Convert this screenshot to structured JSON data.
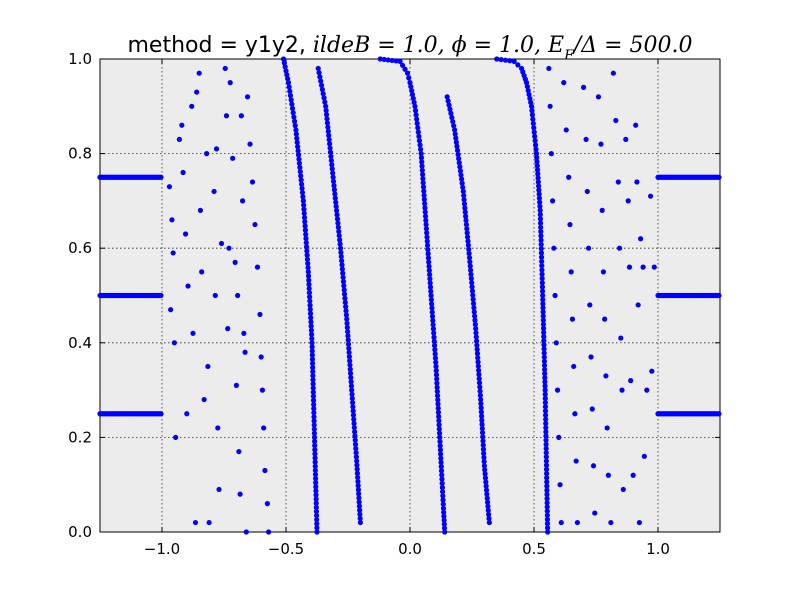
{
  "chart_data": {
    "type": "scatter",
    "title": "method = y1y2, ildeB = 1.0, ϕ = 1.0, E_F/Δ = 500.0",
    "title_parts": {
      "plain": "method = y1y2, ",
      "math": "ildeB = 1.0, ϕ = 1.0, E",
      "sub": "F",
      "math2": "/Δ = 500.0"
    },
    "xlabel": "",
    "ylabel": "",
    "xlim": [
      -1.25,
      1.25
    ],
    "ylim": [
      0.0,
      1.0
    ],
    "xticks": [
      -1.0,
      -0.5,
      0.0,
      0.5,
      1.0
    ],
    "xtick_labels": [
      "−1.0",
      "−0.5",
      "0.0",
      "0.5",
      "1.0"
    ],
    "yticks": [
      0.0,
      0.2,
      0.4,
      0.6,
      0.8,
      1.0
    ],
    "ytick_labels": [
      "0.0",
      "0.2",
      "0.4",
      "0.6",
      "0.8",
      "1.0"
    ],
    "grid": true,
    "marker_color": "#0000ff",
    "background": "#ececec",
    "flat_bands": [
      {
        "y": 0.25,
        "x_ranges": [
          [
            -1.25,
            -1.0
          ],
          [
            1.0,
            1.25
          ]
        ]
      },
      {
        "y": 0.5,
        "x_ranges": [
          [
            -1.25,
            -1.0
          ],
          [
            1.0,
            1.25
          ]
        ]
      },
      {
        "y": 0.75,
        "x_ranges": [
          [
            -1.25,
            -1.0
          ],
          [
            1.0,
            1.25
          ]
        ]
      }
    ],
    "dense_curves": [
      {
        "points": [
          [
            -0.51,
            1.0
          ],
          [
            -0.49,
            0.95
          ],
          [
            -0.46,
            0.85
          ],
          [
            -0.43,
            0.7
          ],
          [
            -0.41,
            0.55
          ],
          [
            -0.395,
            0.4
          ],
          [
            -0.385,
            0.2
          ],
          [
            -0.375,
            0.0
          ]
        ]
      },
      {
        "points": [
          [
            -0.37,
            0.98
          ],
          [
            -0.34,
            0.9
          ],
          [
            -0.31,
            0.75
          ],
          [
            -0.28,
            0.6
          ],
          [
            -0.255,
            0.45
          ],
          [
            -0.235,
            0.3
          ],
          [
            -0.215,
            0.15
          ],
          [
            -0.2,
            0.02
          ]
        ]
      },
      {
        "points": [
          [
            -0.12,
            1.0
          ],
          [
            -0.04,
            0.995
          ],
          [
            -0.01,
            0.97
          ],
          [
            0.0,
            0.95
          ],
          [
            0.02,
            0.9
          ],
          [
            0.045,
            0.8
          ],
          [
            0.065,
            0.65
          ],
          [
            0.085,
            0.5
          ],
          [
            0.105,
            0.35
          ],
          [
            0.12,
            0.2
          ],
          [
            0.135,
            0.05
          ],
          [
            0.14,
            0.0
          ]
        ]
      },
      {
        "points": [
          [
            0.15,
            0.92
          ],
          [
            0.18,
            0.85
          ],
          [
            0.215,
            0.72
          ],
          [
            0.24,
            0.58
          ],
          [
            0.265,
            0.43
          ],
          [
            0.285,
            0.28
          ],
          [
            0.3,
            0.14
          ],
          [
            0.32,
            0.02
          ]
        ]
      },
      {
        "points": [
          [
            0.35,
            1.0
          ],
          [
            0.42,
            0.995
          ],
          [
            0.45,
            0.98
          ],
          [
            0.47,
            0.95
          ],
          [
            0.49,
            0.9
          ],
          [
            0.51,
            0.8
          ],
          [
            0.525,
            0.68
          ],
          [
            0.535,
            0.5
          ],
          [
            0.545,
            0.3
          ],
          [
            0.555,
            0.0
          ]
        ]
      }
    ],
    "sparse_points": [
      [
        -0.97,
        0.73
      ],
      [
        -0.96,
        0.66
      ],
      [
        -0.955,
        0.59
      ],
      [
        -0.965,
        0.47
      ],
      [
        -0.95,
        0.4
      ],
      [
        -0.945,
        0.2
      ],
      [
        -0.93,
        0.83
      ],
      [
        -0.92,
        0.86
      ],
      [
        -0.915,
        0.76
      ],
      [
        -0.905,
        0.63
      ],
      [
        -0.895,
        0.52
      ],
      [
        -0.9,
        0.25
      ],
      [
        -0.88,
        0.9
      ],
      [
        -0.875,
        0.42
      ],
      [
        -0.865,
        0.02
      ],
      [
        -0.86,
        0.93
      ],
      [
        -0.85,
        0.97
      ],
      [
        -0.845,
        0.68
      ],
      [
        -0.84,
        0.55
      ],
      [
        -0.83,
        0.28
      ],
      [
        -0.82,
        0.8
      ],
      [
        -0.815,
        0.35
      ],
      [
        -0.81,
        0.02
      ],
      [
        -0.79,
        0.72
      ],
      [
        -0.785,
        0.5
      ],
      [
        -0.78,
        0.81
      ],
      [
        -0.775,
        0.22
      ],
      [
        -0.77,
        0.09
      ],
      [
        -0.76,
        0.61
      ],
      [
        -0.745,
        0.98
      ],
      [
        -0.74,
        0.88
      ],
      [
        -0.735,
        0.43
      ],
      [
        -0.73,
        0.6
      ],
      [
        -0.725,
        0.95
      ],
      [
        -0.715,
        0.79
      ],
      [
        -0.705,
        0.57
      ],
      [
        -0.7,
        0.31
      ],
      [
        -0.695,
        0.5
      ],
      [
        -0.69,
        0.17
      ],
      [
        -0.685,
        0.08
      ],
      [
        -0.68,
        0.88
      ],
      [
        -0.675,
        0.7
      ],
      [
        -0.67,
        0.42
      ],
      [
        -0.665,
        0.38
      ],
      [
        -0.66,
        0.0
      ],
      [
        -0.655,
        0.92
      ],
      [
        -0.645,
        0.82
      ],
      [
        -0.635,
        0.74
      ],
      [
        -0.625,
        0.65
      ],
      [
        -0.615,
        0.56
      ],
      [
        -0.605,
        0.46
      ],
      [
        -0.6,
        0.37
      ],
      [
        -0.595,
        0.3
      ],
      [
        -0.59,
        0.22
      ],
      [
        -0.585,
        0.13
      ],
      [
        -0.575,
        0.06
      ],
      [
        -0.57,
        0.0
      ],
      [
        0.56,
        0.98
      ],
      [
        0.565,
        0.9
      ],
      [
        0.57,
        0.8
      ],
      [
        0.575,
        0.7
      ],
      [
        0.58,
        0.6
      ],
      [
        0.585,
        0.5
      ],
      [
        0.59,
        0.4
      ],
      [
        0.595,
        0.3
      ],
      [
        0.6,
        0.2
      ],
      [
        0.605,
        0.1
      ],
      [
        0.61,
        0.02
      ],
      [
        0.62,
        0.95
      ],
      [
        0.63,
        0.85
      ],
      [
        0.64,
        0.75
      ],
      [
        0.645,
        0.65
      ],
      [
        0.65,
        0.55
      ],
      [
        0.655,
        0.45
      ],
      [
        0.66,
        0.35
      ],
      [
        0.665,
        0.25
      ],
      [
        0.67,
        0.15
      ],
      [
        0.675,
        0.02
      ],
      [
        0.7,
        0.94
      ],
      [
        0.71,
        0.83
      ],
      [
        0.715,
        0.72
      ],
      [
        0.72,
        0.6
      ],
      [
        0.725,
        0.48
      ],
      [
        0.73,
        0.37
      ],
      [
        0.735,
        0.26
      ],
      [
        0.74,
        0.14
      ],
      [
        0.745,
        0.04
      ],
      [
        0.76,
        0.92
      ],
      [
        0.77,
        0.82
      ],
      [
        0.775,
        0.68
      ],
      [
        0.78,
        0.55
      ],
      [
        0.785,
        0.45
      ],
      [
        0.79,
        0.33
      ],
      [
        0.795,
        0.22
      ],
      [
        0.8,
        0.12
      ],
      [
        0.81,
        0.02
      ],
      [
        0.82,
        0.97
      ],
      [
        0.83,
        0.87
      ],
      [
        0.84,
        0.74
      ],
      [
        0.845,
        0.6
      ],
      [
        0.85,
        0.41
      ],
      [
        0.855,
        0.3
      ],
      [
        0.86,
        0.09
      ],
      [
        0.87,
        0.83
      ],
      [
        0.88,
        0.7
      ],
      [
        0.885,
        0.56
      ],
      [
        0.89,
        0.32
      ],
      [
        0.9,
        0.12
      ],
      [
        0.91,
        0.86
      ],
      [
        0.915,
        0.74
      ],
      [
        0.92,
        0.48
      ],
      [
        0.925,
        0.02
      ],
      [
        0.93,
        0.62
      ],
      [
        0.94,
        0.56
      ],
      [
        0.945,
        0.16
      ],
      [
        0.955,
        0.3
      ],
      [
        0.97,
        0.71
      ],
      [
        0.975,
        0.34
      ],
      [
        0.985,
        0.56
      ]
    ]
  }
}
